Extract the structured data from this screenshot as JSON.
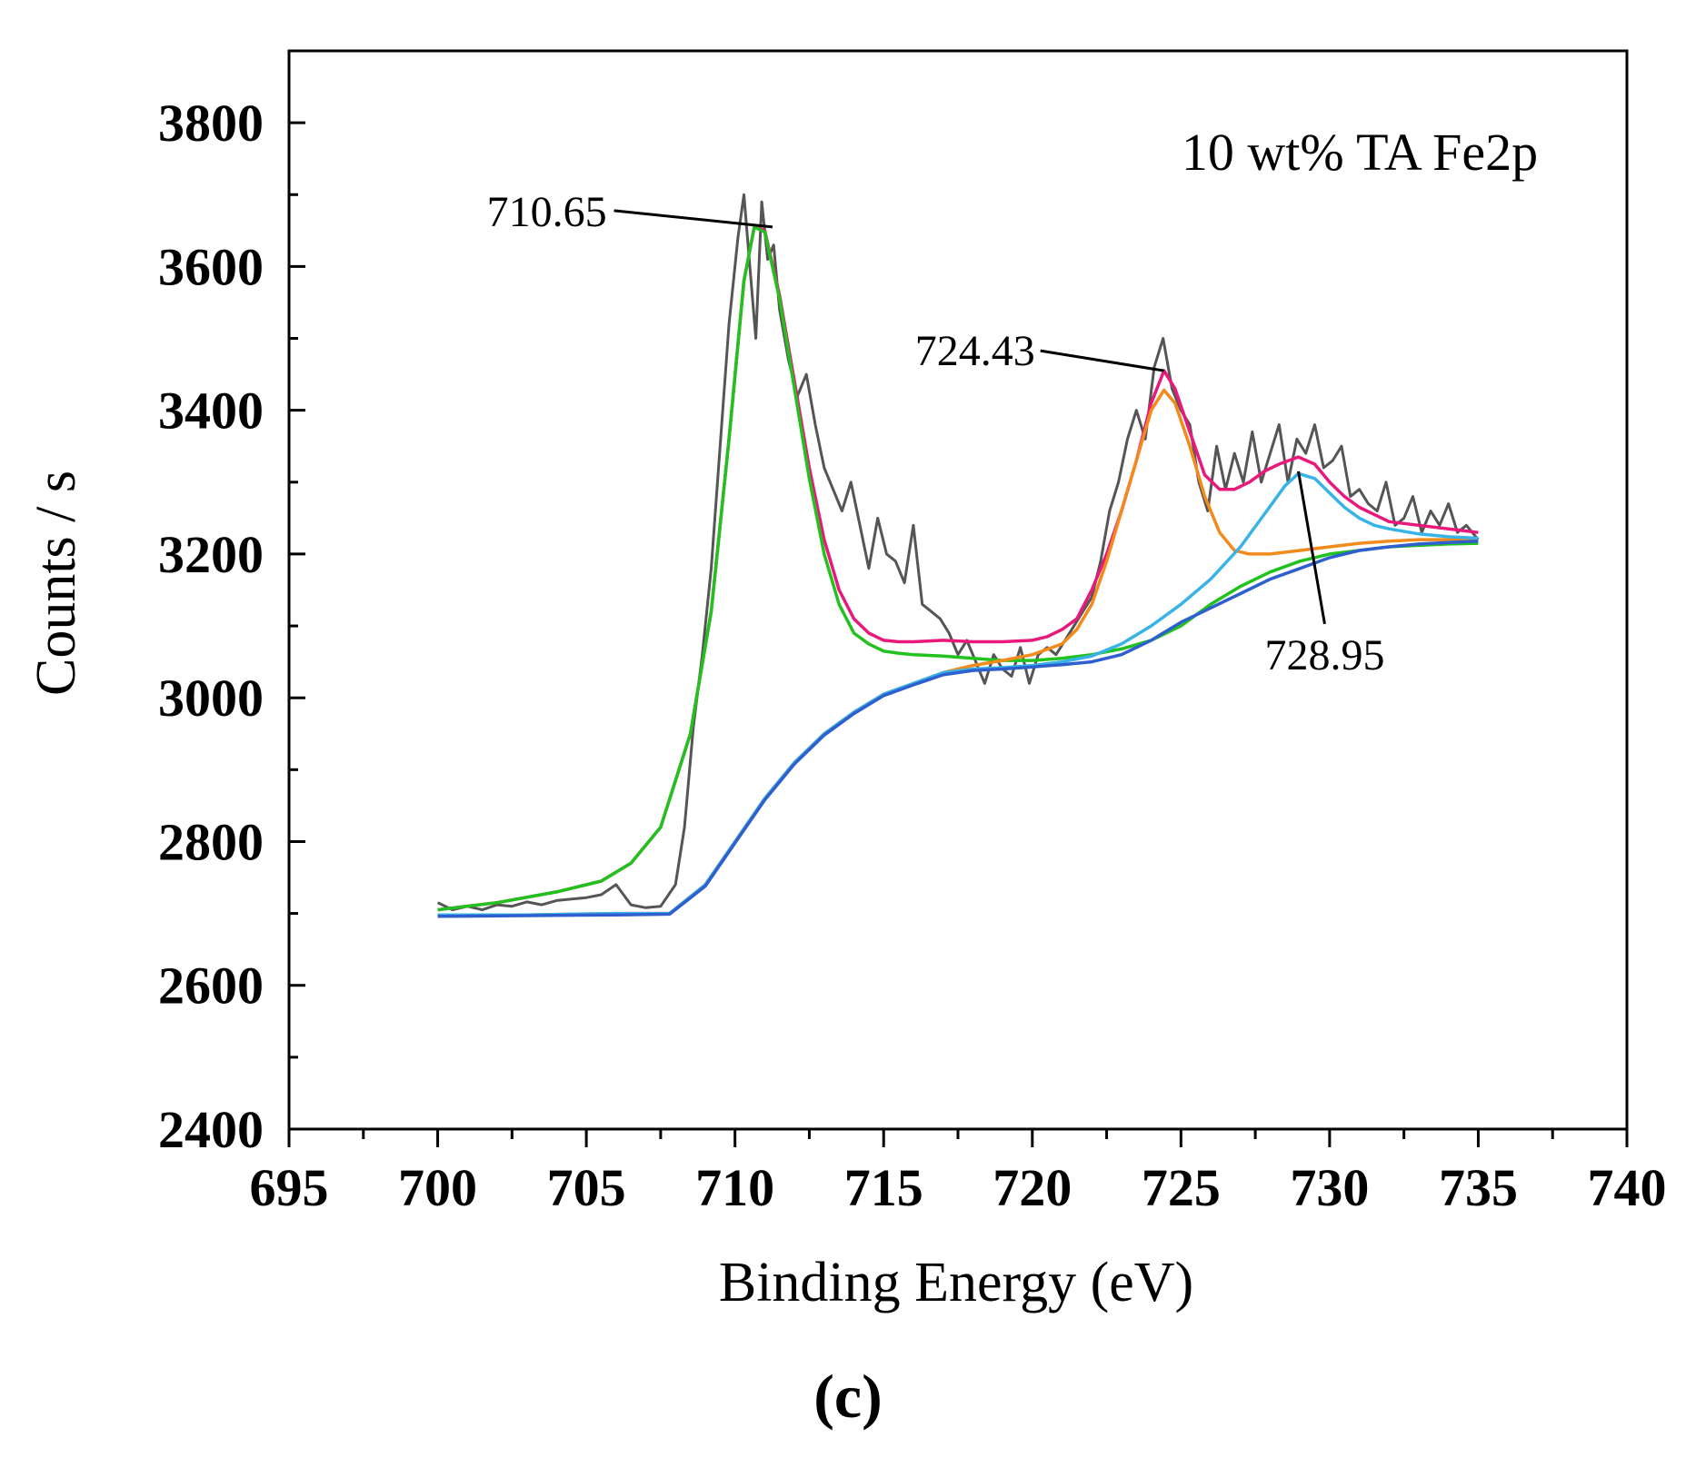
{
  "chart_data": {
    "type": "line",
    "title": "10 wt% TA Fe2p",
    "xlabel": "Binding Energy (eV)",
    "ylabel": "Counts / s",
    "panel_label": "(c)",
    "xlim": [
      695,
      740
    ],
    "ylim": [
      2400,
      3900
    ],
    "x_ticks": [
      695,
      700,
      705,
      710,
      715,
      720,
      725,
      730,
      735,
      740
    ],
    "y_ticks": [
      2400,
      2600,
      2800,
      3000,
      3200,
      3400,
      3600,
      3800
    ],
    "grid": false,
    "annotations": [
      {
        "label": "710.65",
        "x": 710.65,
        "y": 3655
      },
      {
        "label": "724.43",
        "x": 724.43,
        "y": 3455
      },
      {
        "label": "728.95",
        "x": 728.95,
        "y": 3315
      }
    ],
    "series": [
      {
        "role": "raw",
        "color": "#555555",
        "x": [
          700.0,
          700.5,
          701,
          701.5,
          702,
          702.5,
          703,
          703.5,
          704,
          704.5,
          705,
          705.5,
          706,
          706.5,
          707,
          707.5,
          708,
          708.3,
          708.6,
          708.9,
          709.2,
          709.5,
          709.8,
          710.1,
          710.3,
          710.5,
          710.7,
          710.9,
          711.1,
          711.3,
          711.5,
          711.8,
          712.1,
          712.4,
          712.7,
          713.0,
          713.3,
          713.6,
          713.9,
          714.2,
          714.5,
          714.8,
          715.1,
          715.4,
          715.7,
          716.0,
          716.3,
          716.6,
          716.9,
          717.2,
          717.5,
          717.8,
          718.1,
          718.4,
          718.7,
          719.0,
          719.3,
          719.6,
          719.9,
          720.2,
          720.5,
          720.8,
          721.1,
          721.4,
          721.7,
          722.0,
          722.3,
          722.6,
          722.9,
          723.2,
          723.5,
          723.8,
          724.1,
          724.4,
          724.7,
          725.0,
          725.3,
          725.6,
          725.9,
          726.2,
          726.5,
          726.8,
          727.1,
          727.4,
          727.7,
          728.0,
          728.3,
          728.6,
          728.9,
          729.2,
          729.5,
          729.8,
          730.1,
          730.4,
          730.7,
          731.0,
          731.3,
          731.6,
          731.9,
          732.2,
          732.5,
          732.8,
          733.1,
          733.4,
          733.7,
          734.0,
          734.3,
          734.6,
          735.0
        ],
        "y": [
          2715,
          2705,
          2710,
          2705,
          2712,
          2710,
          2716,
          2712,
          2718,
          2720,
          2722,
          2726,
          2740,
          2712,
          2708,
          2710,
          2740,
          2820,
          2960,
          3060,
          3180,
          3350,
          3520,
          3640,
          3700,
          3600,
          3500,
          3690,
          3610,
          3630,
          3540,
          3470,
          3420,
          3450,
          3380,
          3320,
          3290,
          3260,
          3300,
          3240,
          3180,
          3250,
          3200,
          3190,
          3160,
          3240,
          3130,
          3120,
          3110,
          3090,
          3060,
          3080,
          3050,
          3020,
          3060,
          3040,
          3030,
          3070,
          3020,
          3060,
          3070,
          3060,
          3080,
          3100,
          3120,
          3140,
          3190,
          3260,
          3300,
          3360,
          3400,
          3360,
          3460,
          3500,
          3430,
          3400,
          3380,
          3300,
          3260,
          3350,
          3290,
          3340,
          3300,
          3370,
          3300,
          3340,
          3380,
          3300,
          3360,
          3340,
          3380,
          3320,
          3330,
          3350,
          3280,
          3290,
          3270,
          3260,
          3300,
          3240,
          3250,
          3280,
          3230,
          3260,
          3240,
          3270,
          3230,
          3240,
          3220
        ]
      },
      {
        "role": "envelope",
        "color": "#e8197b",
        "x": [
          700,
          702,
          704,
          705.5,
          706.5,
          707.5,
          708.5,
          709.2,
          709.8,
          710.3,
          710.65,
          711,
          711.5,
          712,
          712.5,
          713,
          713.5,
          714,
          714.5,
          715,
          715.5,
          716,
          717,
          718,
          719,
          720,
          720.5,
          721,
          721.5,
          722,
          722.5,
          723,
          723.5,
          724,
          724.43,
          724.8,
          725.3,
          725.8,
          726.3,
          726.8,
          727.3,
          727.8,
          728.3,
          728.95,
          729.5,
          730,
          730.5,
          731,
          731.5,
          732,
          733,
          734,
          735
        ],
        "y": [
          2705,
          2715,
          2730,
          2745,
          2770,
          2820,
          2950,
          3120,
          3360,
          3580,
          3655,
          3650,
          3560,
          3440,
          3320,
          3220,
          3150,
          3110,
          3090,
          3080,
          3078,
          3078,
          3080,
          3078,
          3078,
          3080,
          3085,
          3095,
          3110,
          3150,
          3200,
          3260,
          3330,
          3410,
          3455,
          3430,
          3370,
          3310,
          3290,
          3290,
          3300,
          3315,
          3325,
          3335,
          3325,
          3300,
          3280,
          3265,
          3255,
          3245,
          3240,
          3235,
          3230
        ]
      },
      {
        "role": "peak 710.65",
        "color": "#22c21e",
        "x": [
          700,
          702,
          704,
          705.5,
          706.5,
          707.5,
          708.5,
          709.2,
          709.8,
          710.3,
          710.65,
          711,
          711.5,
          712,
          712.5,
          713,
          713.5,
          714,
          714.5,
          715,
          715.5,
          716,
          717,
          718,
          719,
          720,
          721,
          722,
          723,
          724,
          725,
          726,
          727,
          728,
          729,
          730,
          731,
          732,
          733,
          734,
          735
        ],
        "y": [
          2705,
          2715,
          2730,
          2745,
          2770,
          2820,
          2950,
          3120,
          3360,
          3580,
          3655,
          3648,
          3555,
          3430,
          3305,
          3200,
          3130,
          3090,
          3075,
          3065,
          3062,
          3060,
          3058,
          3055,
          3052,
          3052,
          3055,
          3060,
          3068,
          3080,
          3100,
          3130,
          3155,
          3175,
          3190,
          3200,
          3205,
          3210,
          3212,
          3214,
          3215
        ]
      },
      {
        "role": "peak 724.43",
        "color": "#f28a1c",
        "x": [
          700,
          703,
          706,
          707.8,
          709,
          710,
          711,
          712,
          713,
          714,
          715,
          716,
          717,
          718,
          719,
          720,
          721,
          721.5,
          722,
          722.5,
          723,
          723.5,
          724,
          724.43,
          724.8,
          725.3,
          725.8,
          726.3,
          726.8,
          727.3,
          728,
          729,
          730,
          731,
          732,
          733,
          734,
          735
        ],
        "y": [
          2698,
          2698,
          2700,
          2700,
          2740,
          2800,
          2860,
          2910,
          2950,
          2980,
          3005,
          3020,
          3035,
          3045,
          3052,
          3060,
          3075,
          3095,
          3130,
          3190,
          3260,
          3330,
          3400,
          3428,
          3410,
          3350,
          3280,
          3230,
          3205,
          3200,
          3200,
          3205,
          3210,
          3215,
          3218,
          3220,
          3220,
          3222
        ]
      },
      {
        "role": "peak 728.95",
        "color": "#38b3e8",
        "x": [
          700,
          703,
          706,
          707.8,
          709,
          710,
          711,
          712,
          713,
          714,
          715,
          716,
          717,
          718,
          719,
          720,
          721,
          722,
          723,
          724,
          725,
          726,
          727,
          727.8,
          728.5,
          728.95,
          729.5,
          730,
          730.5,
          731,
          731.5,
          732,
          733,
          734,
          735
        ],
        "y": [
          2698,
          2698,
          2700,
          2700,
          2740,
          2800,
          2860,
          2910,
          2950,
          2980,
          3005,
          3020,
          3035,
          3040,
          3042,
          3045,
          3050,
          3058,
          3075,
          3100,
          3130,
          3165,
          3210,
          3255,
          3295,
          3312,
          3305,
          3285,
          3265,
          3250,
          3240,
          3235,
          3228,
          3224,
          3222
        ]
      },
      {
        "role": "background",
        "color": "#2f5fcf",
        "x": [
          700,
          703,
          706,
          707.8,
          709,
          710,
          711,
          712,
          713,
          714,
          715,
          716,
          717,
          718,
          719,
          720,
          721,
          722,
          723,
          724,
          725,
          726,
          727,
          728,
          729,
          730,
          731,
          732,
          733,
          734,
          735
        ],
        "y": [
          2696,
          2697,
          2698,
          2699,
          2738,
          2798,
          2858,
          2908,
          2948,
          2978,
          3003,
          3018,
          3032,
          3038,
          3040,
          3043,
          3046,
          3050,
          3060,
          3080,
          3105,
          3125,
          3145,
          3165,
          3180,
          3195,
          3205,
          3210,
          3214,
          3216,
          3218
        ]
      }
    ]
  }
}
